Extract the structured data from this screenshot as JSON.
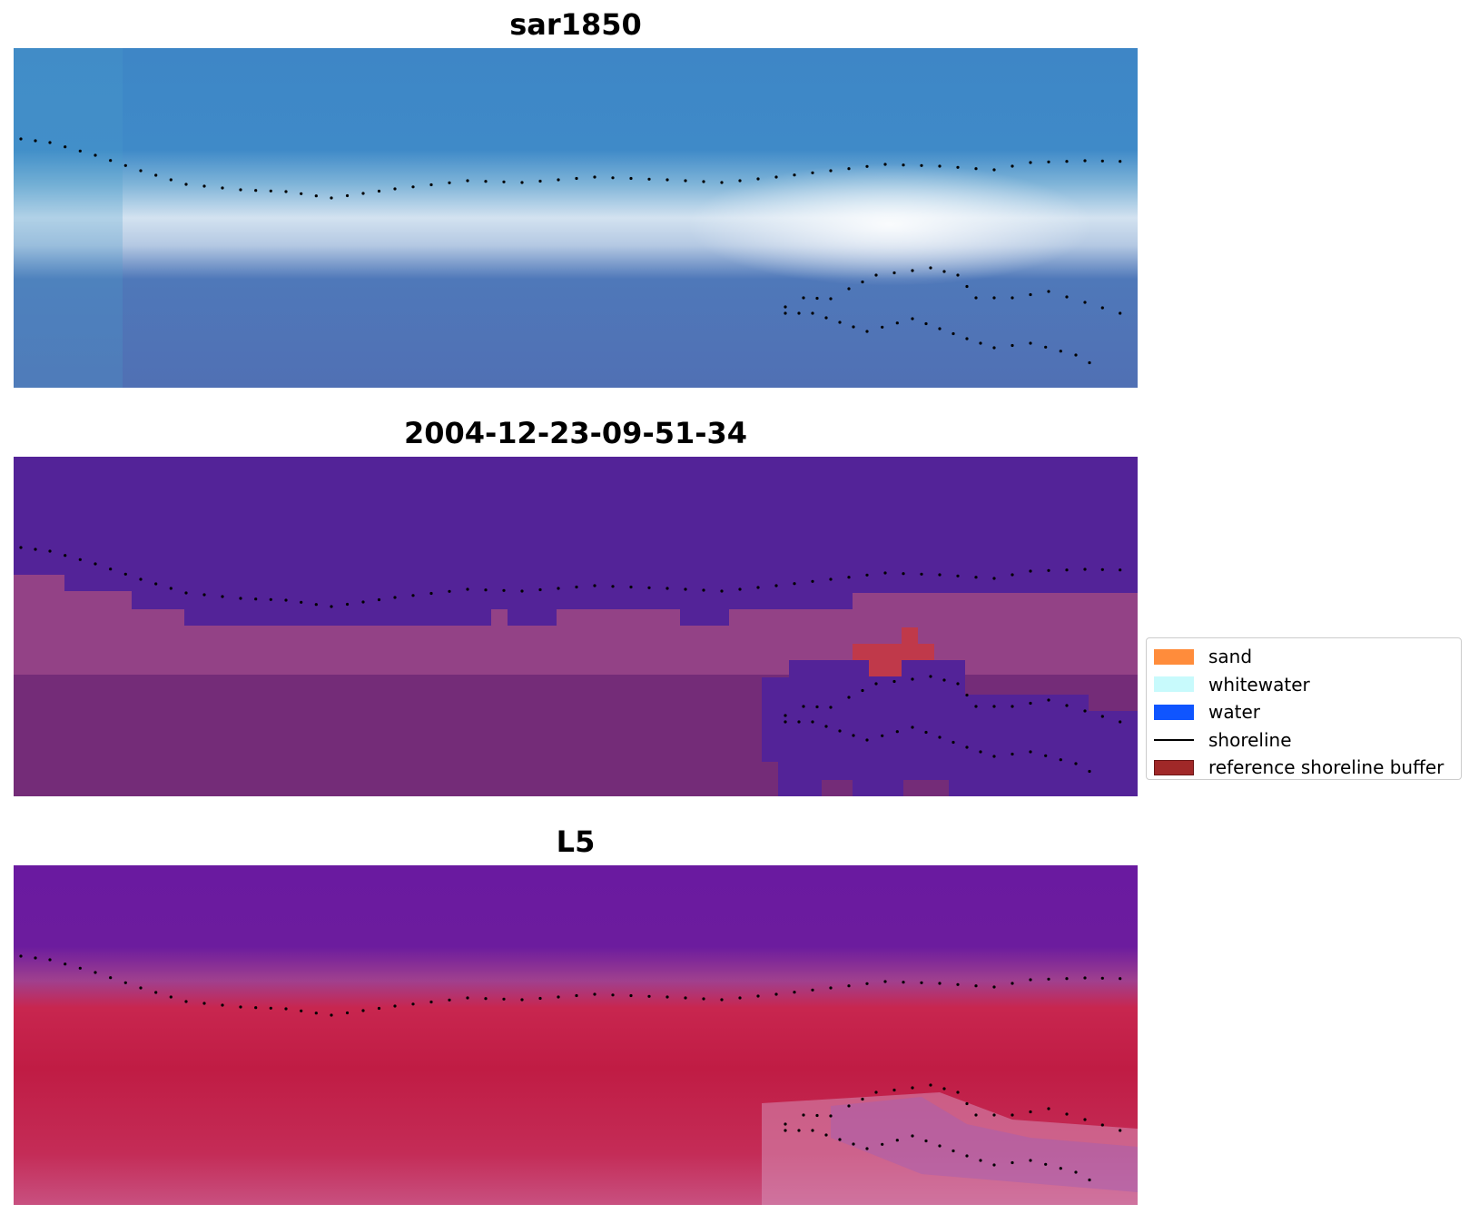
{
  "panels": [
    {
      "title": "sar1850",
      "type": "rgb-composite"
    },
    {
      "title": "2004-12-23-09-51-34",
      "type": "classified-overlay"
    },
    {
      "title": "L5",
      "type": "false-color"
    }
  ],
  "legend": {
    "items": [
      {
        "label": "sand",
        "color": "#ff8c3b",
        "kind": "patch"
      },
      {
        "label": "whitewater",
        "color": "#c8fafc",
        "kind": "patch"
      },
      {
        "label": "water",
        "color": "#0f55ff",
        "kind": "patch"
      },
      {
        "label": "shoreline",
        "color": "#000000",
        "kind": "line"
      },
      {
        "label": "reference shoreline buffer",
        "color": "#a02828",
        "kind": "patch"
      }
    ]
  },
  "colors": {
    "rgb_water_top": "#3f86c4",
    "rgb_surf": "#dbe6f2",
    "rgb_water_bottom": "#4f74b6",
    "class_water": "#532398",
    "class_land": "#742c78",
    "class_land_light": "#a8528f",
    "class_buffer": "#c0394a",
    "fc_top": "#6a1aa0",
    "fc_band": "#c8264f",
    "fc_inner": "#c0153f",
    "fc_pink": "#d0527e"
  }
}
